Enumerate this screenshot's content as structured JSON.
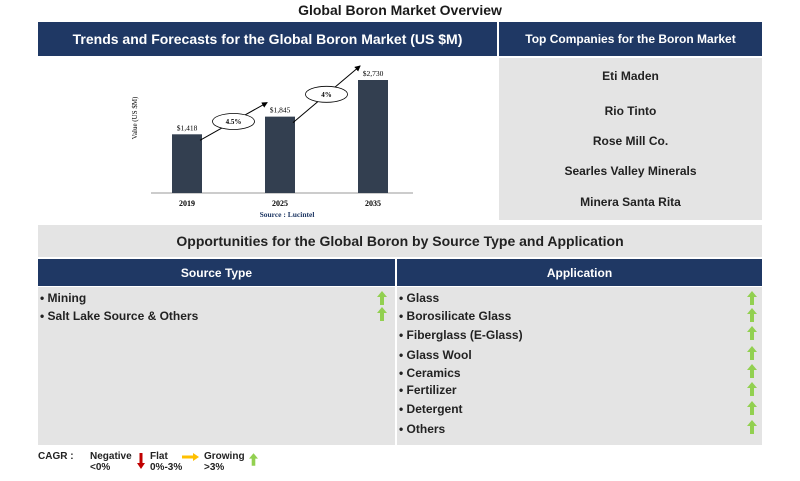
{
  "page": {
    "title": "Global Boron Market Overview"
  },
  "trends": {
    "header": "Trends and Forecasts for the Global Boron Market (US $M)"
  },
  "companies": {
    "header": "Top Companies for the Boron Market",
    "items": [
      "Eti Maden",
      "Rio Tinto",
      "Rose Mill Co.",
      "Searles Valley Minerals",
      "Minera Santa Rita"
    ]
  },
  "opportunities": {
    "header": "Opportunities for the Global Boron by Source Type and Application"
  },
  "source_type": {
    "header": "Source Type",
    "items": [
      {
        "label": "• Mining",
        "trend": "growing"
      },
      {
        "label": "• Salt Lake Source & Others",
        "trend": "growing"
      }
    ]
  },
  "application": {
    "header": "Application",
    "items": [
      {
        "label": "• Glass",
        "trend": "growing"
      },
      {
        "label": "• Borosilicate Glass",
        "trend": "growing"
      },
      {
        "label": "• Fiberglass (E-Glass)",
        "trend": "growing"
      },
      {
        "label": "• Glass Wool",
        "trend": "growing"
      },
      {
        "label": "• Ceramics",
        "trend": "growing"
      },
      {
        "label": "• Fertilizer",
        "trend": "growing"
      },
      {
        "label": "• Detergent",
        "trend": "growing"
      },
      {
        "label": "• Others",
        "trend": "growing"
      }
    ]
  },
  "legend": {
    "cagr_label": "CAGR :",
    "negative": "Negative",
    "negative_range": "<0%",
    "flat": "Flat",
    "flat_range": "0%-3%",
    "growing": "Growing",
    "growing_range": ">3%"
  },
  "colors": {
    "navy": "#1f3864",
    "bar": "#333f50",
    "panel_gray": "#e4e4e4",
    "growing": "#92d050",
    "negative": "#c00000",
    "flat": "#ffc000"
  },
  "chart_data": {
    "type": "bar",
    "categories": [
      "2019",
      "2025",
      "2035"
    ],
    "values": [
      1418,
      1845,
      2730
    ],
    "value_labels": [
      "$1,418",
      "$1,845",
      "$2,730"
    ],
    "ylabel": "Value (US $M)",
    "source": "Source : Lucintel",
    "cagr_annotations": [
      {
        "from": "2019",
        "to": "2025",
        "label": "4.5%"
      },
      {
        "from": "2025",
        "to": "2035",
        "label": "4%"
      }
    ],
    "ylim": [
      0,
      2730
    ],
    "grid": false
  }
}
